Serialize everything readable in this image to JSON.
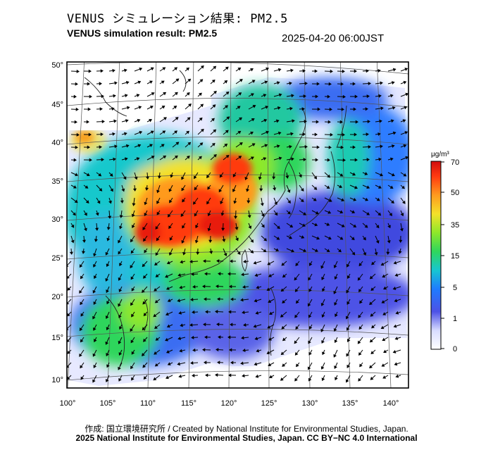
{
  "header": {
    "title_jp": "VENUS シミュレーション結果: PM2.5",
    "title_en": "VENUS simulation result: PM2.5",
    "timestamp": "2025-04-20 06:00JST"
  },
  "map": {
    "lon_ticks": [
      "100°",
      "105°",
      "110°",
      "115°",
      "120°",
      "125°",
      "130°",
      "135°",
      "140°"
    ],
    "lat_ticks": [
      "50°",
      "45°",
      "40°",
      "35°",
      "30°",
      "25°",
      "20°",
      "15°",
      "10°"
    ],
    "field": "PM2.5 concentration with wind vectors",
    "hotspot_region": "Central/Eastern China (peak ≈ 70 μg/m³)"
  },
  "colorbar": {
    "unit": "μg/m³",
    "ticks": [
      "70",
      "50",
      "35",
      "15",
      "5",
      "1",
      "0"
    ],
    "colors": [
      "#ffffff",
      "#d8dcff",
      "#4d52e6",
      "#1f7bff",
      "#17c6d1",
      "#2fd65c",
      "#8ee82a",
      "#f4e12a",
      "#ff9a1f",
      "#ff3a10",
      "#d20d0d"
    ]
  },
  "footer": {
    "credit": "作成: 国立環境研究所 / Created by National Institute for Environmental Studies, Japan.",
    "license": "2025 National Institute for Environmental Studies, Japan. CC BY−NC 4.0 International"
  }
}
